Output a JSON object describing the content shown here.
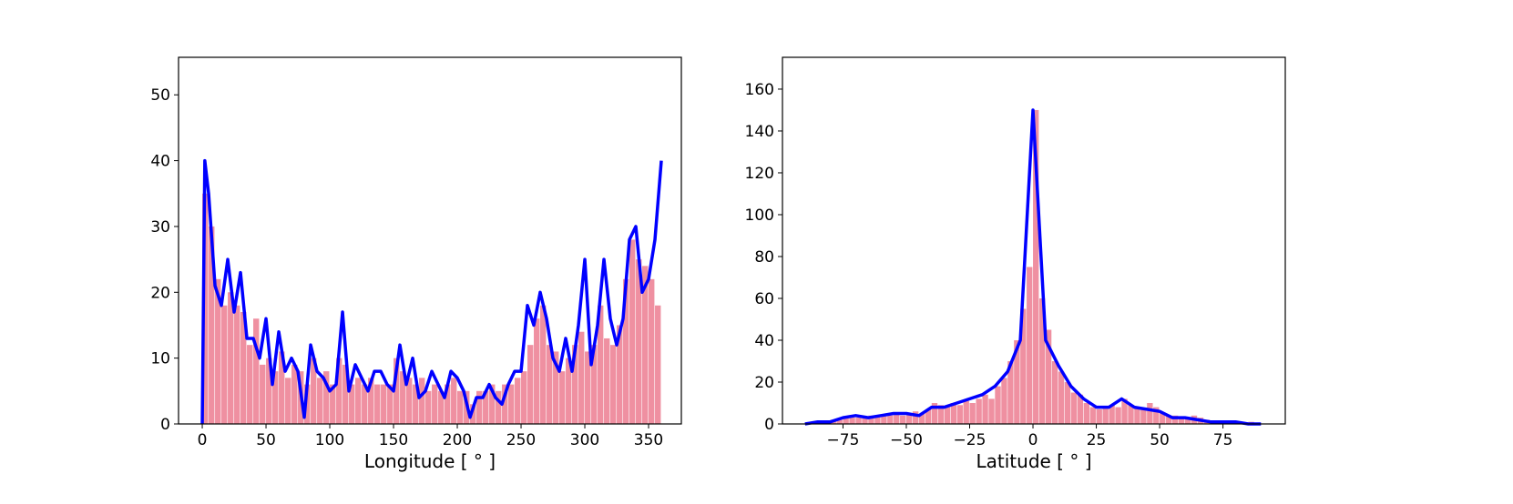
{
  "chart_data": [
    {
      "type": "histogram",
      "xlabel": "Longitude [ ° ]",
      "color": "#ee8a9c",
      "bins": [
        0,
        5,
        10,
        15,
        20,
        25,
        30,
        35,
        40,
        45,
        50,
        55,
        60,
        65,
        70,
        75,
        80,
        85,
        90,
        95,
        100,
        105,
        110,
        115,
        120,
        125,
        130,
        135,
        140,
        145,
        150,
        155,
        160,
        165,
        170,
        175,
        180,
        185,
        190,
        195,
        200,
        205,
        210,
        215,
        220,
        225,
        230,
        235,
        240,
        245,
        250,
        255,
        260,
        265,
        270,
        275,
        280,
        285,
        290,
        295,
        300,
        305,
        310,
        315,
        320,
        325,
        330,
        335,
        340,
        345,
        350,
        355,
        360
      ],
      "values": [
        35,
        30,
        22,
        18,
        20,
        18,
        17,
        12,
        16,
        9,
        10,
        8,
        11,
        7,
        9,
        8,
        6,
        10,
        7,
        8,
        6,
        10,
        9,
        6,
        7,
        6,
        7,
        6,
        6,
        6,
        10,
        8,
        7,
        6,
        7,
        5,
        6,
        5,
        6,
        7,
        5,
        5,
        3,
        5,
        5,
        6,
        5,
        6,
        6,
        7,
        8,
        12,
        16,
        18,
        12,
        11,
        8,
        10,
        12,
        14,
        11,
        12,
        18,
        13,
        12,
        15,
        22,
        28,
        25,
        24,
        22,
        18
      ],
      "line": {
        "color": "#0000ff",
        "x": [
          0,
          2,
          5,
          10,
          15,
          20,
          25,
          30,
          35,
          40,
          45,
          50,
          55,
          60,
          65,
          70,
          75,
          80,
          85,
          90,
          95,
          100,
          105,
          110,
          115,
          120,
          125,
          130,
          135,
          140,
          145,
          150,
          155,
          160,
          165,
          170,
          175,
          180,
          185,
          190,
          195,
          200,
          205,
          210,
          215,
          220,
          225,
          230,
          235,
          240,
          245,
          250,
          255,
          260,
          265,
          270,
          275,
          280,
          285,
          290,
          295,
          300,
          305,
          310,
          315,
          320,
          325,
          330,
          335,
          340,
          345,
          350,
          355,
          360
        ],
        "values": [
          0,
          40,
          35,
          21,
          18,
          25,
          17,
          23,
          13,
          13,
          10,
          16,
          6,
          14,
          8,
          10,
          8,
          1,
          12,
          8,
          7,
          5,
          6,
          17,
          5,
          9,
          7,
          5,
          8,
          8,
          6,
          5,
          12,
          6,
          10,
          4,
          5,
          8,
          6,
          4,
          8,
          7,
          5,
          1,
          4,
          4,
          6,
          4,
          3,
          6,
          8,
          8,
          18,
          15,
          20,
          16,
          10,
          8,
          13,
          8,
          15,
          25,
          9,
          15,
          25,
          16,
          12,
          16,
          28,
          30,
          20,
          22,
          28,
          40
        ]
      },
      "xlim": [
        -18.6,
        375.7
      ],
      "xticks": [
        0,
        50,
        100,
        150,
        200,
        250,
        300,
        350
      ],
      "ylim": [
        0,
        55.7
      ],
      "yticks": [
        0,
        10,
        20,
        30,
        40,
        50
      ]
    },
    {
      "type": "histogram",
      "xlabel": "Latitude [ ° ]",
      "color": "#ee8a9c",
      "bins": [
        -90,
        -87.5,
        -85,
        -82.5,
        -80,
        -77.5,
        -75,
        -72.5,
        -70,
        -67.5,
        -65,
        -62.5,
        -60,
        -57.5,
        -55,
        -52.5,
        -50,
        -47.5,
        -45,
        -42.5,
        -40,
        -37.5,
        -35,
        -32.5,
        -30,
        -27.5,
        -25,
        -22.5,
        -20,
        -17.5,
        -15,
        -12.5,
        -10,
        -7.5,
        -5,
        -2.5,
        0,
        2.5,
        5,
        7.5,
        10,
        12.5,
        15,
        17.5,
        20,
        22.5,
        25,
        27.5,
        30,
        32.5,
        35,
        37.5,
        40,
        42.5,
        45,
        47.5,
        50,
        52.5,
        55,
        57.5,
        60,
        62.5,
        65,
        67.5,
        70,
        72.5,
        75,
        77.5,
        80,
        82.5,
        85,
        87.5,
        90
      ],
      "values": [
        0,
        1,
        1,
        1,
        2,
        2,
        3,
        3,
        3,
        3,
        4,
        4,
        4,
        4,
        5,
        4,
        5,
        6,
        5,
        7,
        10,
        9,
        8,
        10,
        9,
        11,
        10,
        12,
        14,
        12,
        18,
        22,
        30,
        40,
        55,
        75,
        150,
        60,
        45,
        30,
        25,
        20,
        15,
        14,
        10,
        8,
        7,
        8,
        9,
        8,
        12,
        9,
        8,
        7,
        10,
        8,
        5,
        4,
        4,
        3,
        3,
        4,
        3,
        2,
        1,
        1,
        1,
        1,
        1,
        0,
        1,
        0
      ],
      "line": {
        "color": "#0000ff",
        "x": [
          -90,
          -85,
          -80,
          -75,
          -70,
          -65,
          -60,
          -55,
          -50,
          -45,
          -40,
          -35,
          -30,
          -25,
          -20,
          -15,
          -10,
          -5,
          0,
          5,
          10,
          15,
          20,
          25,
          30,
          35,
          40,
          45,
          50,
          55,
          60,
          65,
          70,
          75,
          80,
          85,
          90
        ],
        "values": [
          0,
          1,
          1,
          3,
          4,
          3,
          4,
          5,
          5,
          4,
          8,
          8,
          10,
          12,
          14,
          18,
          25,
          40,
          150,
          40,
          28,
          18,
          12,
          8,
          8,
          12,
          8,
          7,
          6,
          3,
          3,
          2,
          1,
          1,
          1,
          0,
          0
        ]
      },
      "xlim": [
        -98.9,
        99.6
      ],
      "xticks": [
        {
          "value": -75,
          "label": "−75"
        },
        {
          "value": -50,
          "label": "−50"
        },
        {
          "value": -25,
          "label": "−25"
        },
        0,
        25,
        50,
        75
      ],
      "ylim": [
        0,
        175.2
      ],
      "yticks": [
        0,
        20,
        40,
        60,
        80,
        100,
        120,
        140,
        160
      ]
    }
  ]
}
